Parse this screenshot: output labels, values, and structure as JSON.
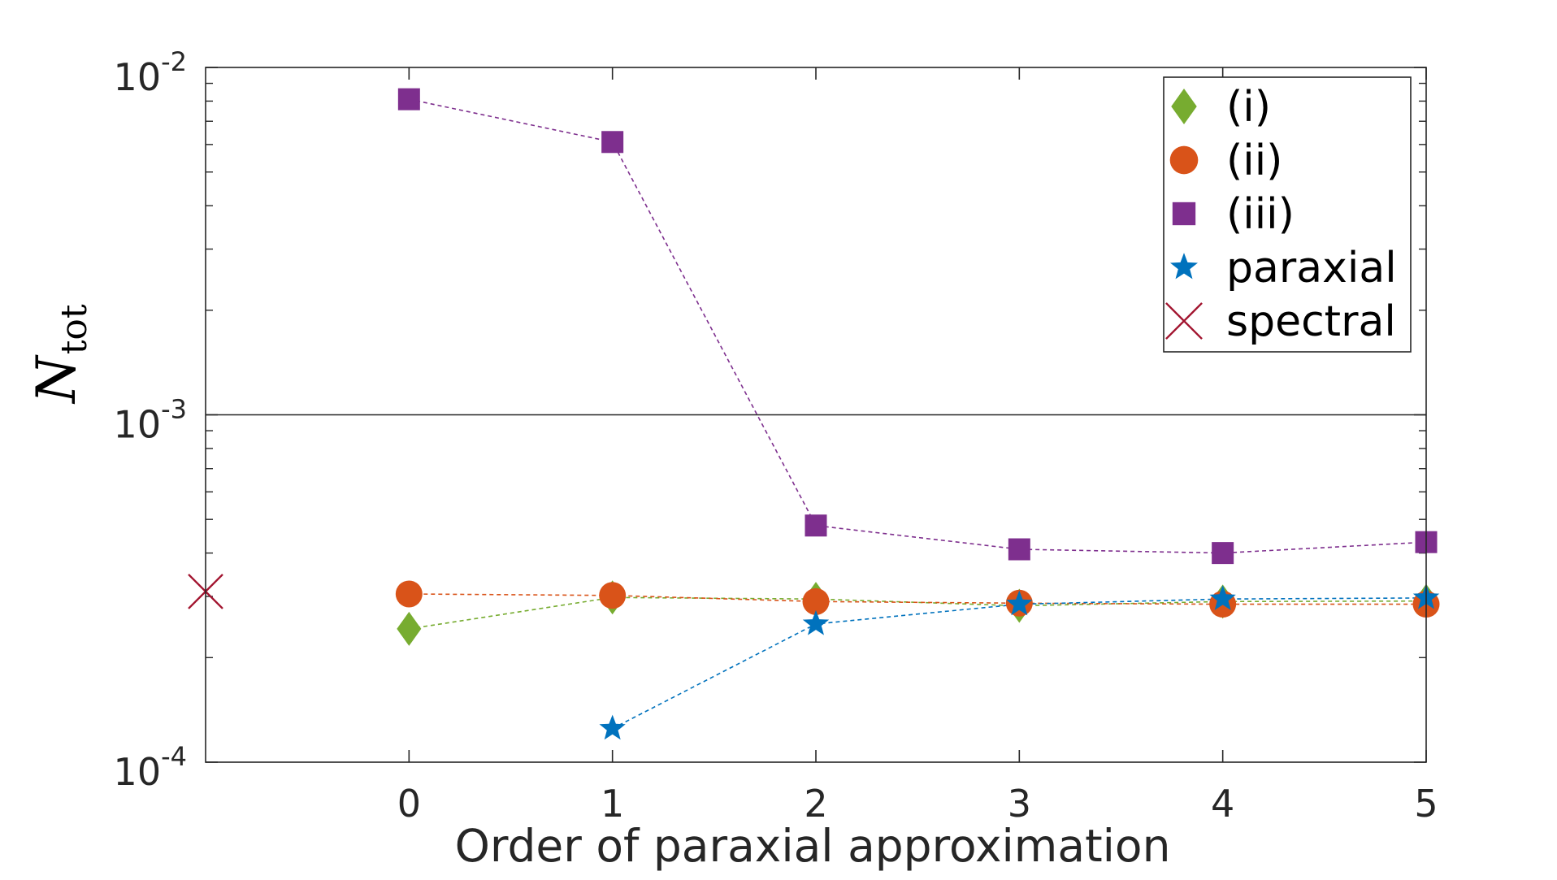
{
  "chart_data": {
    "type": "scatter",
    "title": "",
    "xlabel": "Order of paraxial approximation",
    "ylabel_main": "N",
    "ylabel_sub": "tot",
    "xlim": [
      -1,
      5
    ],
    "ylim": [
      0.0001,
      0.01
    ],
    "yscale": "log",
    "xticks": [
      0,
      1,
      2,
      3,
      4,
      5
    ],
    "xtick_labels": [
      "0",
      "1",
      "2",
      "3",
      "4",
      "5"
    ],
    "yticks": [
      {
        "value": 0.01,
        "base": "10",
        "exp": "-2"
      },
      {
        "value": 0.001,
        "base": "10",
        "exp": "-3"
      },
      {
        "value": 0.0001,
        "base": "10",
        "exp": "-4"
      }
    ],
    "reference_line": 0.001,
    "legend_position": "top-right",
    "series": [
      {
        "name": "(i)",
        "marker": "diamond",
        "color": "#77AC30",
        "x": [
          0,
          1,
          2,
          3,
          4,
          5
        ],
        "y": [
          0.000242,
          0.000298,
          0.000295,
          0.000282,
          0.00029,
          0.000291
        ]
      },
      {
        "name": "(ii)",
        "marker": "circle",
        "color": "#D95319",
        "x": [
          0,
          1,
          2,
          3,
          4,
          5
        ],
        "y": [
          0.000305,
          0.000302,
          0.00029,
          0.000287,
          0.000285,
          0.000285
        ]
      },
      {
        "name": "(iii)",
        "marker": "square",
        "color": "#7E2F8E",
        "x": [
          0,
          1,
          2,
          3,
          4,
          5
        ],
        "y": [
          0.0081,
          0.0061,
          0.00048,
          0.00041,
          0.0004,
          0.00043
        ]
      },
      {
        "name": "paraxial",
        "marker": "star",
        "color": "#0072BD",
        "x": [
          1,
          2,
          3,
          4,
          5
        ],
        "y": [
          0.000125,
          0.00025,
          0.000285,
          0.000295,
          0.000297
        ]
      },
      {
        "name": "spectral",
        "marker": "x",
        "color": "#A2142F",
        "x": [
          -1
        ],
        "y": [
          0.00031
        ]
      }
    ]
  }
}
